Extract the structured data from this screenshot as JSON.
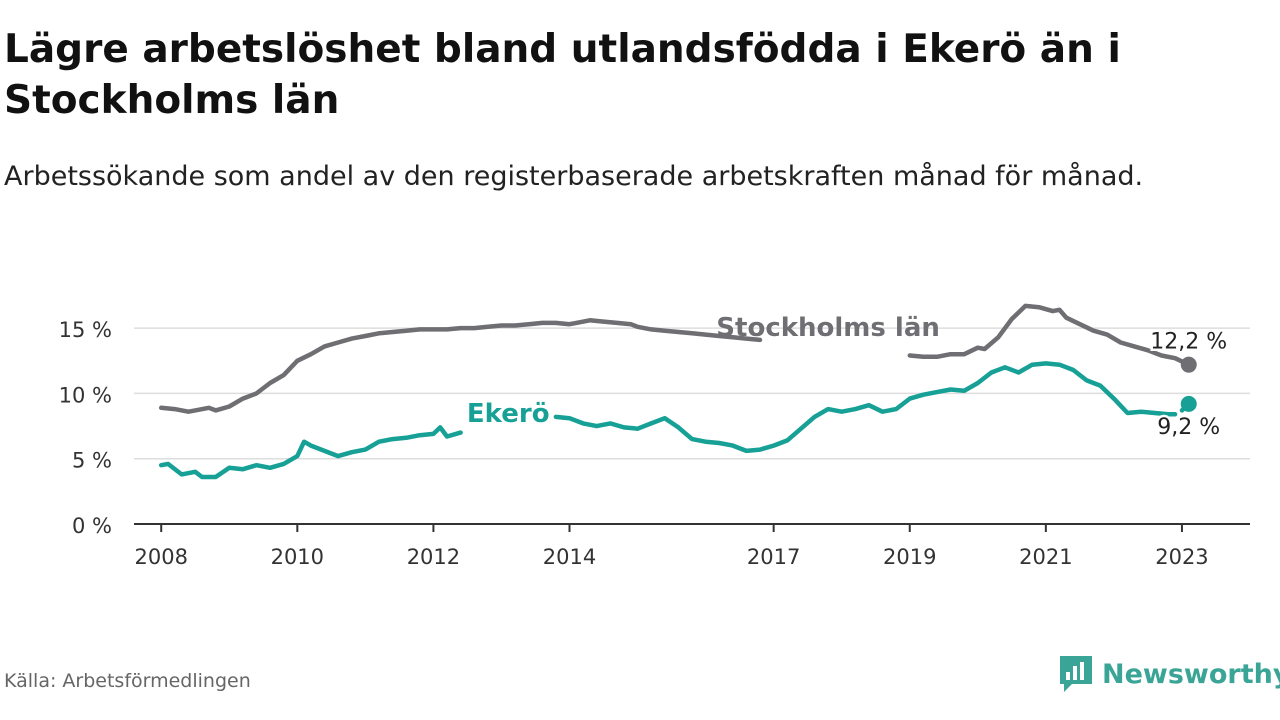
{
  "header": {
    "title": "Lägre arbetslöshet bland utlandsfödda i Ekerö än i Stockholms län",
    "subtitle": "Arbetssökande som andel av den registerbaserade arbetskraften månad för månad."
  },
  "footer": {
    "source": "Källa: Arbetsförmedlingen",
    "brand": "Newsworthy"
  },
  "colors": {
    "stockholm": "#6e6e73",
    "ekero": "#17a096",
    "axis": "#333333",
    "grid": "#dddddd"
  },
  "chart_data": {
    "type": "line",
    "title": "Lägre arbetslöshet bland utlandsfödda i Ekerö än i Stockholms län",
    "xlabel": "",
    "ylabel": "",
    "ylim": [
      0,
      17
    ],
    "xlim": [
      2007.6,
      2024.0
    ],
    "y_ticks": [
      {
        "value": 0,
        "label": "0 %"
      },
      {
        "value": 5,
        "label": "5 %"
      },
      {
        "value": 10,
        "label": "10 %"
      },
      {
        "value": 15,
        "label": "15 %"
      }
    ],
    "x_ticks": [
      {
        "value": 2008.0,
        "label": "2008"
      },
      {
        "value": 2010.0,
        "label": "2010"
      },
      {
        "value": 2012.0,
        "label": "2012"
      },
      {
        "value": 2014.0,
        "label": "2014"
      },
      {
        "value": 2017.0,
        "label": "2017"
      },
      {
        "value": 2019.0,
        "label": "2019"
      },
      {
        "value": 2021.0,
        "label": "2021"
      },
      {
        "value": 2023.0,
        "label": "2023"
      }
    ],
    "series": [
      {
        "name": "Stockholms län",
        "key": "stockholm",
        "end_label": "12,2 %",
        "gaps": [
          [
            2016.8,
            2019.0
          ]
        ],
        "points": [
          [
            2008.0,
            8.9
          ],
          [
            2008.2,
            8.8
          ],
          [
            2008.4,
            8.6
          ],
          [
            2008.5,
            8.7
          ],
          [
            2008.7,
            8.9
          ],
          [
            2008.8,
            8.7
          ],
          [
            2009.0,
            9.0
          ],
          [
            2009.2,
            9.6
          ],
          [
            2009.4,
            10.0
          ],
          [
            2009.6,
            10.8
          ],
          [
            2009.8,
            11.4
          ],
          [
            2010.0,
            12.5
          ],
          [
            2010.2,
            13.0
          ],
          [
            2010.4,
            13.6
          ],
          [
            2010.6,
            13.9
          ],
          [
            2010.8,
            14.2
          ],
          [
            2011.0,
            14.4
          ],
          [
            2011.2,
            14.6
          ],
          [
            2011.4,
            14.7
          ],
          [
            2011.6,
            14.8
          ],
          [
            2011.8,
            14.9
          ],
          [
            2012.0,
            14.9
          ],
          [
            2012.2,
            14.9
          ],
          [
            2012.4,
            15.0
          ],
          [
            2012.6,
            15.0
          ],
          [
            2012.8,
            15.1
          ],
          [
            2013.0,
            15.2
          ],
          [
            2013.2,
            15.2
          ],
          [
            2013.4,
            15.3
          ],
          [
            2013.6,
            15.4
          ],
          [
            2013.8,
            15.4
          ],
          [
            2014.0,
            15.3
          ],
          [
            2014.1,
            15.4
          ],
          [
            2014.3,
            15.6
          ],
          [
            2014.5,
            15.5
          ],
          [
            2014.7,
            15.4
          ],
          [
            2014.9,
            15.3
          ],
          [
            2015.0,
            15.1
          ],
          [
            2015.2,
            14.9
          ],
          [
            2015.4,
            14.8
          ],
          [
            2015.6,
            14.7
          ],
          [
            2015.8,
            14.6
          ],
          [
            2016.0,
            14.5
          ],
          [
            2016.2,
            14.4
          ],
          [
            2016.4,
            14.3
          ],
          [
            2016.6,
            14.2
          ],
          [
            2016.8,
            14.1
          ],
          [
            2019.0,
            12.9
          ],
          [
            2019.2,
            12.8
          ],
          [
            2019.4,
            12.8
          ],
          [
            2019.6,
            13.0
          ],
          [
            2019.8,
            13.0
          ],
          [
            2020.0,
            13.5
          ],
          [
            2020.1,
            13.4
          ],
          [
            2020.3,
            14.3
          ],
          [
            2020.5,
            15.7
          ],
          [
            2020.7,
            16.7
          ],
          [
            2020.9,
            16.6
          ],
          [
            2021.1,
            16.3
          ],
          [
            2021.2,
            16.4
          ],
          [
            2021.3,
            15.8
          ],
          [
            2021.5,
            15.3
          ],
          [
            2021.7,
            14.8
          ],
          [
            2021.9,
            14.5
          ],
          [
            2022.1,
            13.9
          ],
          [
            2022.3,
            13.6
          ],
          [
            2022.5,
            13.3
          ],
          [
            2022.7,
            12.9
          ],
          [
            2022.9,
            12.7
          ],
          [
            2023.1,
            12.2
          ]
        ]
      },
      {
        "name": "Ekerö",
        "key": "ekero",
        "end_label": "9,2 %",
        "gaps": [
          [
            2012.4,
            2013.8
          ],
          [
            2022.9,
            2023.0
          ]
        ],
        "points": [
          [
            2008.0,
            4.5
          ],
          [
            2008.1,
            4.6
          ],
          [
            2008.3,
            3.8
          ],
          [
            2008.5,
            4.0
          ],
          [
            2008.6,
            3.6
          ],
          [
            2008.8,
            3.6
          ],
          [
            2009.0,
            4.3
          ],
          [
            2009.2,
            4.2
          ],
          [
            2009.4,
            4.5
          ],
          [
            2009.6,
            4.3
          ],
          [
            2009.8,
            4.6
          ],
          [
            2010.0,
            5.2
          ],
          [
            2010.1,
            6.3
          ],
          [
            2010.2,
            6.0
          ],
          [
            2010.4,
            5.6
          ],
          [
            2010.6,
            5.2
          ],
          [
            2010.8,
            5.5
          ],
          [
            2011.0,
            5.7
          ],
          [
            2011.2,
            6.3
          ],
          [
            2011.4,
            6.5
          ],
          [
            2011.6,
            6.6
          ],
          [
            2011.8,
            6.8
          ],
          [
            2012.0,
            6.9
          ],
          [
            2012.1,
            7.4
          ],
          [
            2012.2,
            6.7
          ],
          [
            2012.4,
            7.0
          ],
          [
            2013.8,
            8.2
          ],
          [
            2014.0,
            8.1
          ],
          [
            2014.2,
            7.7
          ],
          [
            2014.4,
            7.5
          ],
          [
            2014.6,
            7.7
          ],
          [
            2014.8,
            7.4
          ],
          [
            2015.0,
            7.3
          ],
          [
            2015.2,
            7.7
          ],
          [
            2015.4,
            8.1
          ],
          [
            2015.6,
            7.4
          ],
          [
            2015.8,
            6.5
          ],
          [
            2016.0,
            6.3
          ],
          [
            2016.2,
            6.2
          ],
          [
            2016.4,
            6.0
          ],
          [
            2016.6,
            5.6
          ],
          [
            2016.8,
            5.7
          ],
          [
            2017.0,
            6.0
          ],
          [
            2017.2,
            6.4
          ],
          [
            2017.4,
            7.3
          ],
          [
            2017.6,
            8.2
          ],
          [
            2017.8,
            8.8
          ],
          [
            2018.0,
            8.6
          ],
          [
            2018.2,
            8.8
          ],
          [
            2018.4,
            9.1
          ],
          [
            2018.6,
            8.6
          ],
          [
            2018.8,
            8.8
          ],
          [
            2019.0,
            9.6
          ],
          [
            2019.2,
            9.9
          ],
          [
            2019.4,
            10.1
          ],
          [
            2019.6,
            10.3
          ],
          [
            2019.8,
            10.2
          ],
          [
            2020.0,
            10.8
          ],
          [
            2020.2,
            11.6
          ],
          [
            2020.4,
            12.0
          ],
          [
            2020.6,
            11.6
          ],
          [
            2020.8,
            12.2
          ],
          [
            2021.0,
            12.3
          ],
          [
            2021.2,
            12.2
          ],
          [
            2021.4,
            11.8
          ],
          [
            2021.6,
            11.0
          ],
          [
            2021.8,
            10.6
          ],
          [
            2022.0,
            9.6
          ],
          [
            2022.2,
            8.5
          ],
          [
            2022.4,
            8.6
          ],
          [
            2022.6,
            8.5
          ],
          [
            2022.8,
            8.4
          ],
          [
            2022.9,
            8.4
          ],
          [
            2023.0,
            8.7
          ],
          [
            2023.1,
            9.2
          ]
        ]
      }
    ],
    "annotations": [
      {
        "text": "Stockholms län",
        "series": "stockholm",
        "x": 2017.8,
        "y": 14.4
      },
      {
        "text": "Ekerö",
        "series": "ekero",
        "x": 2013.1,
        "y": 7.8
      }
    ]
  }
}
